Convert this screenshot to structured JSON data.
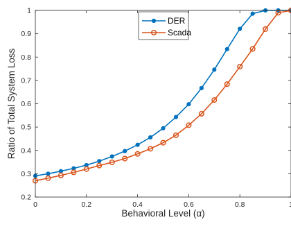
{
  "chart_data": {
    "type": "line",
    "xlabel": "Behavioral Level (α)",
    "ylabel": "Ratio of Total System Loss",
    "xlim": [
      0,
      1
    ],
    "ylim": [
      0.2,
      1
    ],
    "grid": false,
    "legend_position": "top-center",
    "x_ticks": [
      "0",
      "0.2",
      "0.4",
      "0.6",
      "0.8",
      "1"
    ],
    "y_ticks": [
      "0.2",
      "0.3",
      "0.4",
      "0.5",
      "0.6",
      "0.7",
      "0.8",
      "0.9",
      "1"
    ],
    "x": [
      0,
      0.05,
      0.1,
      0.15,
      0.2,
      0.25,
      0.3,
      0.35,
      0.4,
      0.45,
      0.5,
      0.55,
      0.6,
      0.65,
      0.7,
      0.75,
      0.8,
      0.85,
      0.9,
      0.95,
      1.0
    ],
    "series": [
      {
        "name": "DER",
        "color": "#0072BD",
        "marker": "filled-circle",
        "values": [
          0.291,
          0.3,
          0.311,
          0.323,
          0.337,
          0.354,
          0.374,
          0.397,
          0.424,
          0.456,
          0.495,
          0.543,
          0.598,
          0.667,
          0.746,
          0.834,
          0.921,
          0.986,
          1.0,
          1.0,
          1.0
        ]
      },
      {
        "name": "Scada",
        "color": "#D95319",
        "marker": "open-circle",
        "values": [
          0.27,
          0.281,
          0.293,
          0.306,
          0.32,
          0.335,
          0.349,
          0.365,
          0.385,
          0.407,
          0.433,
          0.465,
          0.508,
          0.557,
          0.616,
          0.684,
          0.759,
          0.835,
          0.92,
          0.99,
          1.0
        ]
      }
    ]
  }
}
